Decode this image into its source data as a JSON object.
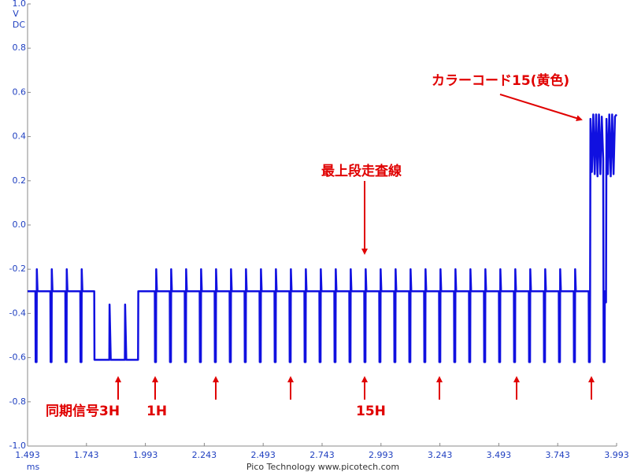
{
  "chart_data": {
    "type": "line",
    "y_unit": "V",
    "y_coupling": "DC",
    "x_unit": "ms",
    "footer": "Pico Technology  www.picotech.com",
    "color": "#1010e0",
    "xlim": [
      1.493,
      3.993
    ],
    "xticks": [
      1.493,
      1.743,
      1.993,
      2.243,
      2.493,
      2.743,
      2.993,
      3.243,
      3.493,
      3.743,
      3.993
    ],
    "ylim": [
      -1,
      1
    ],
    "yticks": [
      {
        "value": 1,
        "label": "1.0"
      },
      0.8,
      0.6,
      0.4,
      0.2,
      {
        "value": 0,
        "label": "0.0"
      },
      -0.2,
      -0.4,
      -0.6,
      -0.8,
      {
        "value": -1,
        "label": "-1.0"
      }
    ],
    "grid": false,
    "annotations": [
      {
        "text": "カラーコード15(黄色)"
      },
      {
        "text": "最上段走査線"
      },
      {
        "text": "同期信号3H"
      },
      {
        "text": "1H"
      },
      {
        "text": "15H"
      }
    ],
    "x": [
      1.493,
      1.5263,
      1.5273,
      1.5313,
      1.5323,
      1.5353,
      1.5898,
      1.5908,
      1.5948,
      1.5958,
      1.5988,
      1.6533,
      1.6543,
      1.6583,
      1.6593,
      1.6623,
      1.7168,
      1.7178,
      1.7218,
      1.7228,
      1.7258,
      1.776,
      1.777,
      1.84,
      1.841,
      1.846,
      1.906,
      1.907,
      1.912,
      1.962,
      1.963,
      2.033,
      2.034,
      2.038,
      2.039,
      2.042,
      2.0965,
      2.0975,
      2.1015,
      2.1025,
      2.1055,
      2.16,
      2.161,
      2.165,
      2.166,
      2.169,
      2.2235,
      2.2245,
      2.2285,
      2.2295,
      2.2325,
      2.287,
      2.288,
      2.292,
      2.293,
      2.296,
      2.3505,
      2.3515,
      2.3555,
      2.3565,
      2.3595,
      2.414,
      2.415,
      2.419,
      2.42,
      2.423,
      2.4775,
      2.4785,
      2.4825,
      2.4835,
      2.4865,
      2.541,
      2.542,
      2.546,
      2.547,
      2.55,
      2.6045,
      2.6055,
      2.6095,
      2.6105,
      2.6135,
      2.668,
      2.669,
      2.673,
      2.674,
      2.677,
      2.7315,
      2.7325,
      2.7365,
      2.7375,
      2.7405,
      2.795,
      2.796,
      2.8,
      2.801,
      2.804,
      2.8585,
      2.8595,
      2.8635,
      2.8645,
      2.8675,
      2.922,
      2.923,
      2.927,
      2.928,
      2.931,
      2.9855,
      2.9865,
      2.9905,
      2.9915,
      2.9945,
      3.049,
      3.05,
      3.054,
      3.055,
      3.058,
      3.1125,
      3.1135,
      3.1175,
      3.1185,
      3.1215,
      3.176,
      3.177,
      3.181,
      3.182,
      3.185,
      3.2395,
      3.2405,
      3.2445,
      3.2455,
      3.2485,
      3.303,
      3.304,
      3.308,
      3.309,
      3.312,
      3.3665,
      3.3675,
      3.3715,
      3.3725,
      3.3755,
      3.43,
      3.431,
      3.435,
      3.436,
      3.439,
      3.4935,
      3.4945,
      3.4985,
      3.4995,
      3.5025,
      3.557,
      3.558,
      3.562,
      3.563,
      3.566,
      3.6205,
      3.6215,
      3.6255,
      3.6265,
      3.6295,
      3.684,
      3.685,
      3.689,
      3.69,
      3.693,
      3.7475,
      3.7485,
      3.7525,
      3.7535,
      3.7565,
      3.811,
      3.812,
      3.816,
      3.817,
      3.82,
      3.8745,
      3.8755,
      3.8795,
      3.8805,
      3.882,
      3.888,
      3.894,
      3.9,
      3.906,
      3.912,
      3.918,
      3.924,
      3.93,
      3.936,
      3.938,
      3.942,
      3.943,
      3.948,
      3.95,
      3.956,
      3.962,
      3.968,
      3.974,
      3.98,
      3.986,
      3.993
    ],
    "values": [
      -0.3,
      -0.3,
      -0.62,
      -0.62,
      -0.2,
      -0.3,
      -0.3,
      -0.62,
      -0.62,
      -0.2,
      -0.3,
      -0.3,
      -0.62,
      -0.62,
      -0.2,
      -0.3,
      -0.3,
      -0.62,
      -0.62,
      -0.2,
      -0.3,
      -0.3,
      -0.61,
      -0.61,
      -0.36,
      -0.61,
      -0.61,
      -0.36,
      -0.61,
      -0.61,
      -0.3,
      -0.3,
      -0.62,
      -0.62,
      -0.2,
      -0.3,
      -0.3,
      -0.62,
      -0.62,
      -0.2,
      -0.3,
      -0.3,
      -0.62,
      -0.62,
      -0.2,
      -0.3,
      -0.3,
      -0.62,
      -0.62,
      -0.2,
      -0.3,
      -0.3,
      -0.62,
      -0.62,
      -0.2,
      -0.3,
      -0.3,
      -0.62,
      -0.62,
      -0.2,
      -0.3,
      -0.3,
      -0.62,
      -0.62,
      -0.2,
      -0.3,
      -0.3,
      -0.62,
      -0.62,
      -0.2,
      -0.3,
      -0.3,
      -0.62,
      -0.62,
      -0.2,
      -0.3,
      -0.3,
      -0.62,
      -0.62,
      -0.2,
      -0.3,
      -0.3,
      -0.62,
      -0.62,
      -0.2,
      -0.3,
      -0.3,
      -0.62,
      -0.62,
      -0.2,
      -0.3,
      -0.3,
      -0.62,
      -0.62,
      -0.2,
      -0.3,
      -0.3,
      -0.62,
      -0.62,
      -0.2,
      -0.3,
      -0.3,
      -0.62,
      -0.62,
      -0.2,
      -0.3,
      -0.3,
      -0.62,
      -0.62,
      -0.2,
      -0.3,
      -0.3,
      -0.62,
      -0.62,
      -0.2,
      -0.3,
      -0.3,
      -0.62,
      -0.62,
      -0.2,
      -0.3,
      -0.3,
      -0.62,
      -0.62,
      -0.2,
      -0.3,
      -0.3,
      -0.62,
      -0.62,
      -0.2,
      -0.3,
      -0.3,
      -0.62,
      -0.62,
      -0.2,
      -0.3,
      -0.3,
      -0.62,
      -0.62,
      -0.2,
      -0.3,
      -0.3,
      -0.62,
      -0.62,
      -0.2,
      -0.3,
      -0.3,
      -0.62,
      -0.62,
      -0.2,
      -0.3,
      -0.3,
      -0.62,
      -0.62,
      -0.2,
      -0.3,
      -0.3,
      -0.62,
      -0.62,
      -0.2,
      -0.3,
      -0.3,
      -0.62,
      -0.62,
      -0.2,
      -0.3,
      -0.3,
      -0.62,
      -0.62,
      -0.2,
      -0.3,
      -0.3,
      -0.62,
      -0.62,
      -0.2,
      -0.3,
      -0.3,
      -0.62,
      -0.62,
      -0.3,
      0.48,
      0.24,
      0.5,
      0.23,
      0.5,
      0.22,
      0.5,
      0.23,
      0.49,
      0.3,
      -0.62,
      -0.62,
      -0.3,
      -0.35,
      0.48,
      0.23,
      0.5,
      0.22,
      0.5,
      0.23,
      0.49,
      0.5
    ]
  }
}
